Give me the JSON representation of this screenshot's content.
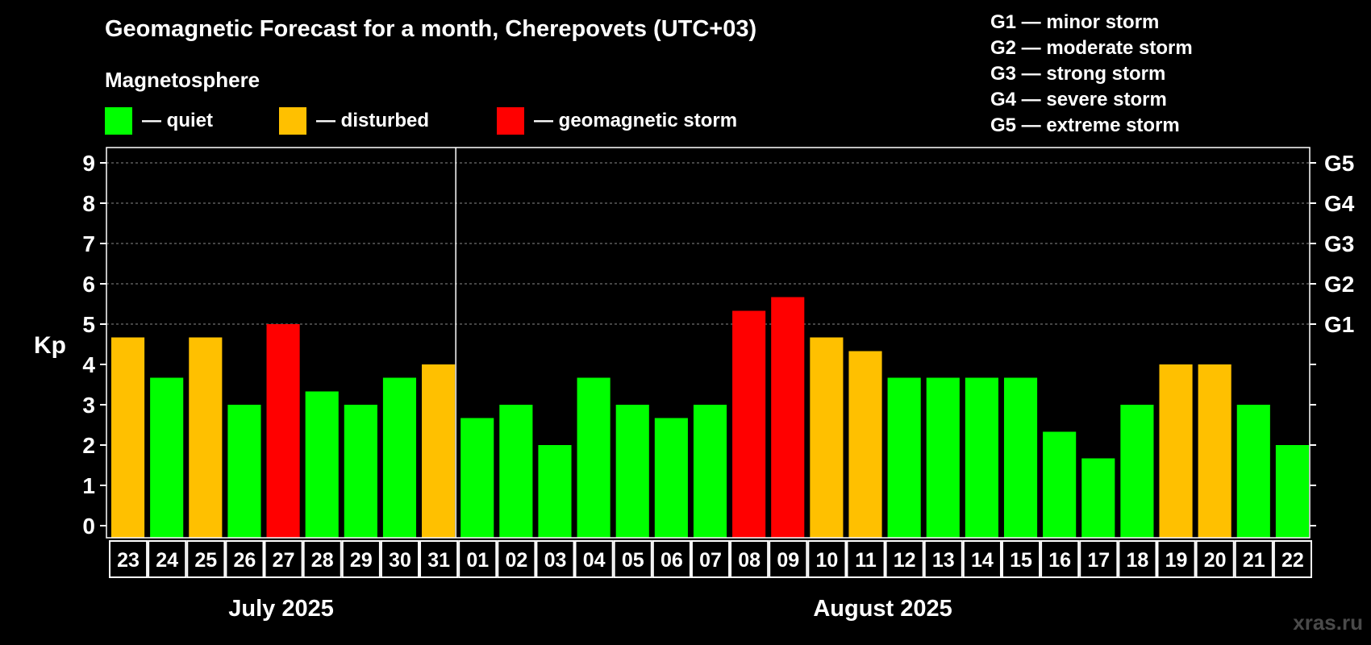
{
  "title": "Geomagnetic Forecast for a month, Cherepovets (UTC+03)",
  "subtitle": "Magnetosphere",
  "legend": [
    {
      "label": "— quiet",
      "color": "#00ff00"
    },
    {
      "label": "— disturbed",
      "color": "#ffc000"
    },
    {
      "label": "— geomagnetic storm",
      "color": "#ff0000"
    }
  ],
  "g_legend": [
    "G1 — minor storm",
    "G2 — moderate storm",
    "G3 — strong storm",
    "G4 — severe storm",
    "G5 — extreme storm"
  ],
  "watermark": "xras.ru",
  "chart_data": {
    "type": "bar",
    "title": "Geomagnetic Forecast for a month, Cherepovets (UTC+03)",
    "ylabel": "Kp",
    "ylim": [
      0,
      9
    ],
    "yticks": [
      0,
      1,
      2,
      3,
      4,
      5,
      6,
      7,
      8,
      9
    ],
    "right_ticks": [
      {
        "value": 5,
        "label": "G1"
      },
      {
        "value": 6,
        "label": "G2"
      },
      {
        "value": 7,
        "label": "G3"
      },
      {
        "value": 8,
        "label": "G4"
      },
      {
        "value": 9,
        "label": "G5"
      }
    ],
    "months": [
      {
        "label": "July 2025",
        "count": 9
      },
      {
        "label": "August 2025",
        "count": 22
      }
    ],
    "categories": [
      "23",
      "24",
      "25",
      "26",
      "27",
      "28",
      "29",
      "30",
      "31",
      "01",
      "02",
      "03",
      "04",
      "05",
      "06",
      "07",
      "08",
      "09",
      "10",
      "11",
      "12",
      "13",
      "14",
      "15",
      "16",
      "17",
      "18",
      "19",
      "20",
      "21",
      "22"
    ],
    "values": [
      4.67,
      3.67,
      4.67,
      3.0,
      5.0,
      3.33,
      3.0,
      3.67,
      4.0,
      2.67,
      3.0,
      2.0,
      3.67,
      3.0,
      2.67,
      3.0,
      5.33,
      5.67,
      4.67,
      4.33,
      3.67,
      3.67,
      3.67,
      3.67,
      2.33,
      1.67,
      3.0,
      4.0,
      4.0,
      3.0,
      2.0
    ],
    "status": [
      "disturbed",
      "quiet",
      "disturbed",
      "quiet",
      "storm",
      "quiet",
      "quiet",
      "quiet",
      "disturbed",
      "quiet",
      "quiet",
      "quiet",
      "quiet",
      "quiet",
      "quiet",
      "quiet",
      "storm",
      "storm",
      "disturbed",
      "disturbed",
      "quiet",
      "quiet",
      "quiet",
      "quiet",
      "quiet",
      "quiet",
      "quiet",
      "disturbed",
      "disturbed",
      "quiet",
      "quiet"
    ],
    "status_colors": {
      "quiet": "#00ff00",
      "disturbed": "#ffc000",
      "storm": "#ff0000"
    },
    "grid": true
  }
}
